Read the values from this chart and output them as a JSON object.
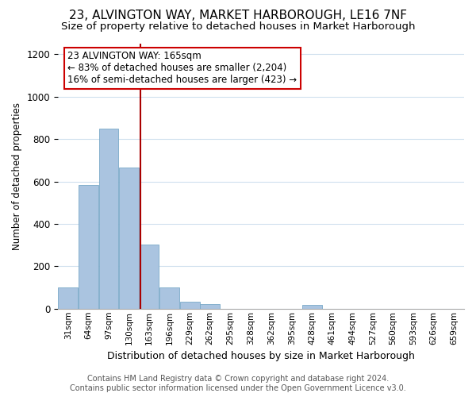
{
  "title1": "23, ALVINGTON WAY, MARKET HARBOROUGH, LE16 7NF",
  "title2": "Size of property relative to detached houses in Market Harborough",
  "xlabel": "Distribution of detached houses by size in Market Harborough",
  "ylabel": "Number of detached properties",
  "footnote1": "Contains HM Land Registry data © Crown copyright and database right 2024.",
  "footnote2": "Contains public sector information licensed under the Open Government Licence v3.0.",
  "annotation_line1": "23 ALVINGTON WAY: 165sqm",
  "annotation_line2": "← 83% of detached houses are smaller (2,204)",
  "annotation_line3": "16% of semi-detached houses are larger (423) →",
  "bar_edges": [
    31,
    64,
    97,
    130,
    163,
    196,
    229,
    262,
    295,
    328,
    362,
    395,
    428,
    461,
    494,
    527,
    560,
    593,
    626,
    659,
    692
  ],
  "bar_values": [
    100,
    585,
    850,
    667,
    303,
    100,
    33,
    20,
    0,
    0,
    0,
    0,
    18,
    0,
    0,
    0,
    0,
    0,
    0,
    0
  ],
  "bar_color": "#aac4e0",
  "bar_edge_color": "#7aaac8",
  "vline_x": 165,
  "ylim": [
    0,
    1250
  ],
  "yticks": [
    0,
    200,
    400,
    600,
    800,
    1000,
    1200
  ],
  "background_color": "#ffffff",
  "grid_color": "#d0e0ee",
  "annotation_box_color": "#ffffff",
  "annotation_box_edge": "#cc0000",
  "title1_fontsize": 11,
  "title2_fontsize": 9.5,
  "xlabel_fontsize": 9,
  "ylabel_fontsize": 8.5,
  "footnote_fontsize": 7
}
